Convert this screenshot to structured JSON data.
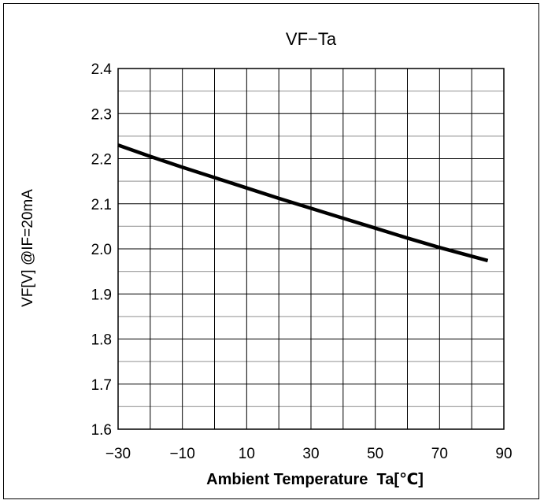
{
  "chart_data": {
    "type": "line",
    "title": "VF−Ta",
    "xlabel": "Ambient Temperature  Ta[℃]",
    "ylabel": "VF[V] @IF=20mA",
    "xlim": [
      -30,
      90
    ],
    "ylim": [
      1.6,
      2.4
    ],
    "x_ticks": [
      "−30",
      "−10",
      "10",
      "30",
      "50",
      "70",
      "90"
    ],
    "y_ticks": [
      "1.6",
      "1.7",
      "1.8",
      "1.9",
      "2.0",
      "2.1",
      "2.2",
      "2.3",
      "2.4"
    ],
    "grid": true,
    "series": [
      {
        "x": [
          -30,
          -20,
          -10,
          0,
          10,
          20,
          30,
          40,
          50,
          60,
          70,
          85
        ],
        "y": [
          2.23,
          2.205,
          2.181,
          2.158,
          2.135,
          2.112,
          2.09,
          2.068,
          2.046,
          2.024,
          2.003,
          1.974
        ],
        "color": "#000000"
      }
    ],
    "colors": {
      "major_grid": "#000000",
      "minor_grid": "#a6a6a6",
      "line": "#000000"
    }
  }
}
